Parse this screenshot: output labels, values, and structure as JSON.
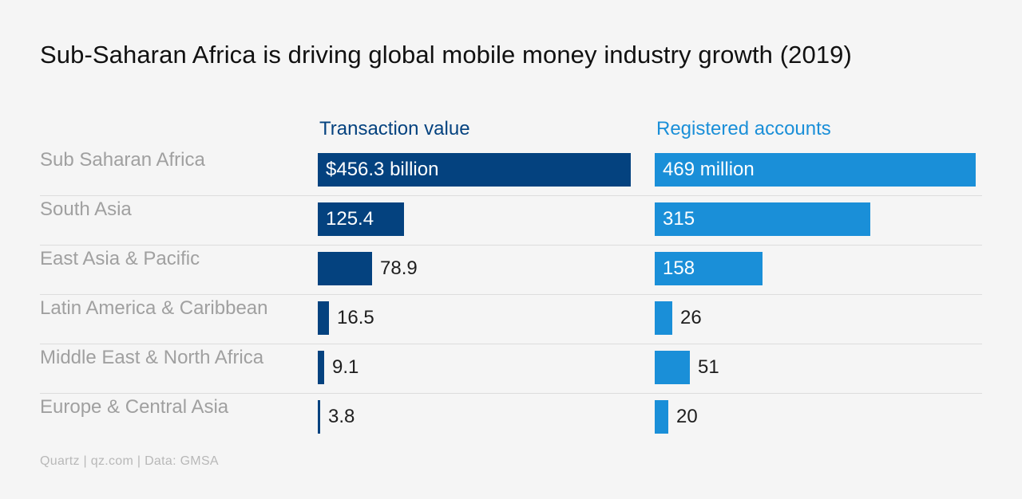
{
  "chart_data": {
    "type": "bar",
    "title": "Sub-Saharan Africa is driving global mobile money industry growth (2019)",
    "categories": [
      "Sub Saharan Africa",
      "South Asia",
      "East Asia & Pacific",
      "Latin America & Caribbean",
      "Middle East & North Africa",
      "Europe & Central Asia"
    ],
    "series": [
      {
        "name": "Transaction value",
        "color": "#04427f",
        "values": [
          456.3,
          125.4,
          78.9,
          16.5,
          9.1,
          3.8
        ],
        "labels": [
          "$456.3 billion",
          "125.4",
          "78.9",
          "16.5",
          "9.1",
          "3.8"
        ]
      },
      {
        "name": "Registered accounts",
        "color": "#1a8fd8",
        "values": [
          469,
          315,
          158,
          26,
          51,
          20
        ],
        "labels": [
          "469 million",
          "315",
          "158",
          "26",
          "51",
          "20"
        ]
      }
    ],
    "source": "Quartz | qz.com | Data: GMSA"
  }
}
